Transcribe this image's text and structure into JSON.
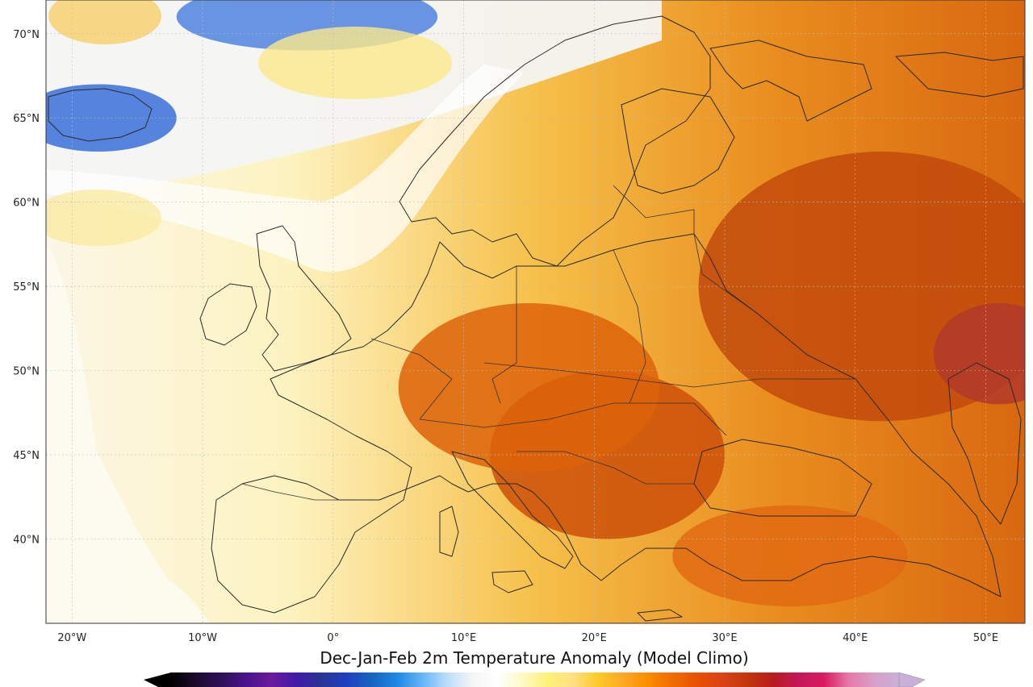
{
  "map": {
    "title": "Dec-Jan-Feb 2m Temperature Anomaly (Model Climo)",
    "lon_range": [
      -22,
      53
    ],
    "lat_range": [
      35,
      72
    ],
    "lat_ticks": [
      {
        "value": 40,
        "label": "40°N"
      },
      {
        "value": 45,
        "label": "45°N"
      },
      {
        "value": 50,
        "label": "50°N"
      },
      {
        "value": 55,
        "label": "55°N"
      },
      {
        "value": 60,
        "label": "60°N"
      },
      {
        "value": 65,
        "label": "65°N"
      },
      {
        "value": 70,
        "label": "70°N"
      }
    ],
    "lon_ticks": [
      {
        "value": -20,
        "label": "20°W"
      },
      {
        "value": -10,
        "label": "10°W"
      },
      {
        "value": 0,
        "label": "0°"
      },
      {
        "value": 10,
        "label": "10°E"
      },
      {
        "value": 20,
        "label": "20°E"
      },
      {
        "value": 30,
        "label": "30°E"
      },
      {
        "value": 40,
        "label": "40°E"
      },
      {
        "value": 50,
        "label": "50°E"
      }
    ],
    "colorbar": {
      "colors": [
        "#000000",
        "#1c0a2e",
        "#2e1058",
        "#4a148c",
        "#6a1b9a",
        "#3f1aa8",
        "#283593",
        "#1e40c0",
        "#1565c0",
        "#1e88e5",
        "#64b5f6",
        "#bbdefb",
        "#f5f5f5",
        "#ffffff",
        "#fff9c4",
        "#fff176",
        "#ffe082",
        "#ffca28",
        "#ffa726",
        "#fb8c00",
        "#ef6c00",
        "#e65100",
        "#d84315",
        "#bf360c",
        "#b71c1c",
        "#c2185b",
        "#d81b60",
        "#e57aa8",
        "#d8a0c8",
        "#c8b0d8"
      ],
      "extend": "both"
    },
    "anomaly_regions": [
      {
        "name": "Balkans",
        "lon": 21,
        "lat": 45,
        "rx": 9,
        "ry": 5,
        "color": "#cc4f08"
      },
      {
        "name": "Central Europe",
        "lon": 15,
        "lat": 49,
        "rx": 10,
        "ry": 5,
        "color": "#dd6309"
      },
      {
        "name": "Russia",
        "lon": 42,
        "lat": 55,
        "rx": 14,
        "ry": 8,
        "color": "#c24a0c"
      },
      {
        "name": "Southwest Russia",
        "lon": 51,
        "lat": 51,
        "rx": 5,
        "ry": 3,
        "color": "#b23a2a"
      },
      {
        "name": "Iceland",
        "lon": -18,
        "lat": 65,
        "rx": 6,
        "ry": 2,
        "color": "#3a6fd8"
      },
      {
        "name": "Norwegian Sea",
        "lon": -2,
        "lat": 71,
        "rx": 10,
        "ry": 2,
        "color": "#4f83e0"
      },
      {
        "name": "Turkey",
        "lon": 35,
        "lat": 39,
        "rx": 9,
        "ry": 3,
        "color": "#e26a12"
      }
    ]
  }
}
